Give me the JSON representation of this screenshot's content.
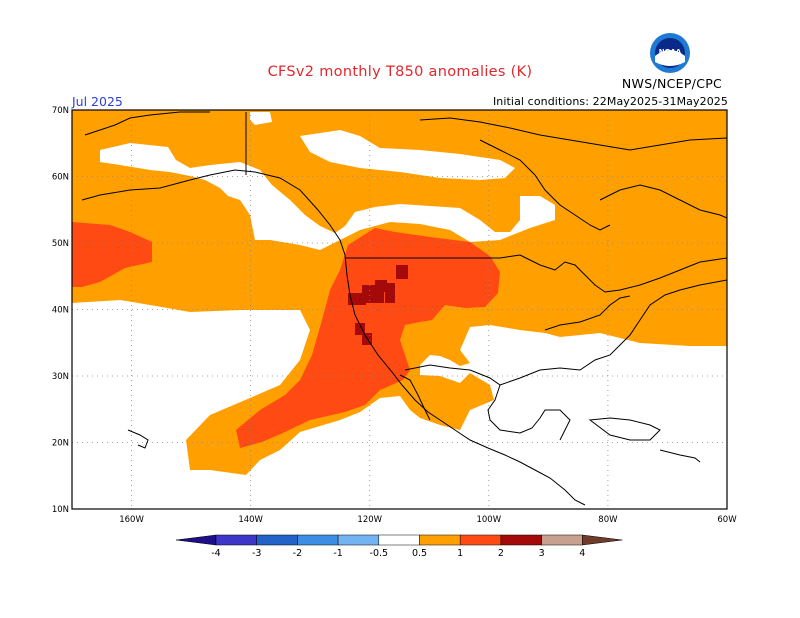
{
  "header": {
    "title": "CFSv2 monthly T850 anomalies (K)",
    "valid_month": "Jul 2025",
    "initial_conditions": "Initial conditions: 22May2025-31May2025",
    "agency": "NWS/NCEP/CPC",
    "logo_text": "NOAA"
  },
  "map": {
    "projection": "cylindrical lat-lon",
    "lon_range": [
      -170,
      -60
    ],
    "lat_range": [
      10,
      70
    ],
    "lat_labels": [
      "70N",
      "60N",
      "50N",
      "40N",
      "30N",
      "20N",
      "10N"
    ],
    "lon_labels": [
      "160W",
      "140W",
      "120W",
      "100W",
      "80W",
      "60W"
    ],
    "grid": "dotted"
  },
  "legend": {
    "labels": [
      "-4",
      "-3",
      "-2",
      "-1",
      "-0.5",
      "0.5",
      "1",
      "2",
      "3",
      "4"
    ],
    "colors": {
      "below_-4": "#1d0f8a",
      "-4_-3": "#3c37c8",
      "-3_-2": "#2163c8",
      "-2_-1": "#3c8de6",
      "-1_-0.5": "#72b4f2",
      "-0.5_0.5": "#ffffff",
      "0.5_1": "#ffa000",
      "1_2": "#ff4a14",
      "2_3": "#a50a0a",
      "3_4": "#c8a090",
      "above_4": "#6e3c28"
    }
  },
  "colors": {
    "title": "#e0282d",
    "month": "#2f3fd0",
    "anom_0.5_1": "#ffa000",
    "anom_1_2": "#ff4a14",
    "anom_2_3": "#a50a0a"
  }
}
